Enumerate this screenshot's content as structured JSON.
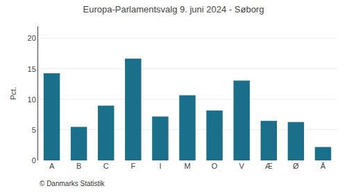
{
  "chart_data": {
    "type": "bar",
    "title": "Europa-Parlamentsvalg 9. juni 2024 - Søborg",
    "categories": [
      "A",
      "B",
      "C",
      "F",
      "I",
      "M",
      "O",
      "V",
      "Æ",
      "Ø",
      "Å"
    ],
    "values": [
      14.3,
      5.5,
      9.0,
      16.7,
      7.2,
      10.7,
      8.2,
      13.1,
      6.5,
      6.3,
      2.2
    ],
    "color": "#1a6f8a",
    "ylabel": "Pct.",
    "annotations": [
      "© Danmarks Statistik"
    ],
    "ylim": [
      0,
      22
    ],
    "yticks": [
      0,
      5,
      10,
      15,
      20
    ],
    "grid": true
  }
}
